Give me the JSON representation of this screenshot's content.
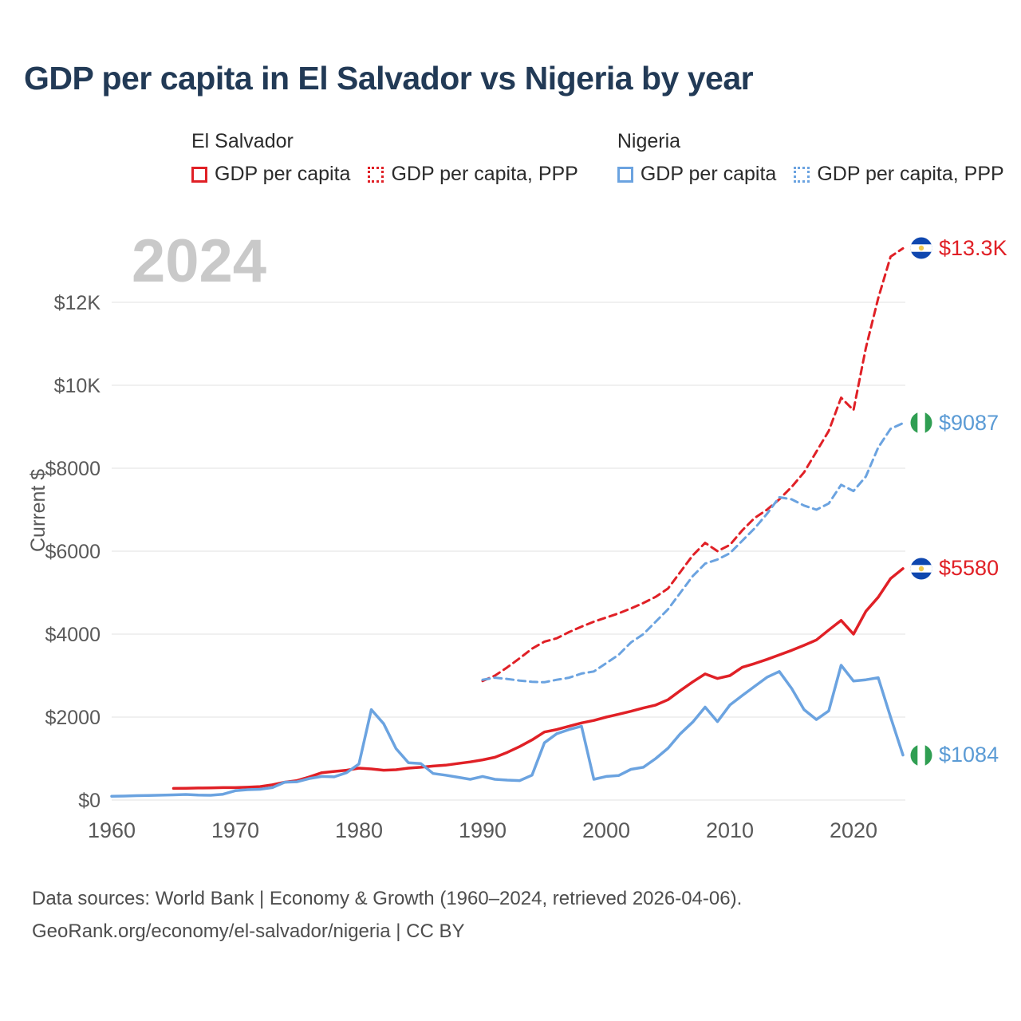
{
  "title": "GDP per capita in El Salvador vs Nigeria by year",
  "watermark": "2024",
  "colors": {
    "el_salvador": "#e02026",
    "nigeria": "#6ba3e0",
    "nigeria_label_text": "#5b9bd5",
    "title_text": "#223a56",
    "axis_text": "#595959",
    "gridline": "#ececec",
    "watermark": "#c9c9c9"
  },
  "legend": {
    "groups": [
      {
        "country": "El Salvador",
        "items": [
          {
            "label": "GDP per capita",
            "style": "solid",
            "color": "#e02026"
          },
          {
            "label": "GDP per capita, PPP",
            "style": "dotted",
            "color": "#e02026"
          }
        ]
      },
      {
        "country": "Nigeria",
        "items": [
          {
            "label": "GDP per capita",
            "style": "solid",
            "color": "#6ba3e0"
          },
          {
            "label": "GDP per capita, PPP",
            "style": "dotted",
            "color": "#6ba3e0"
          }
        ]
      }
    ]
  },
  "chart_data": {
    "type": "line",
    "title": "GDP per capita in El Salvador vs Nigeria by year",
    "xlabel": "",
    "ylabel": "Current $",
    "x_range": [
      1960,
      2024
    ],
    "ylim": [
      0,
      13600
    ],
    "grid": "horizontal",
    "legend_position": "top",
    "x_ticks": [
      1960,
      1970,
      1980,
      1990,
      2000,
      2010,
      2020
    ],
    "y_ticks": [
      {
        "value": 0,
        "label": "$0"
      },
      {
        "value": 2000,
        "label": "$2000"
      },
      {
        "value": 4000,
        "label": "$4000"
      },
      {
        "value": 6000,
        "label": "$6000"
      },
      {
        "value": 8000,
        "label": "$8000"
      },
      {
        "value": 10000,
        "label": "$10K"
      },
      {
        "value": 12000,
        "label": "$12K"
      }
    ],
    "series": [
      {
        "id": "es-gdp",
        "name": "El Salvador GDP per capita",
        "country": "El Salvador",
        "measure": "GDP per capita",
        "color": "#e02026",
        "dash": "solid",
        "end_label": "$5580",
        "end_value": 5580,
        "points": [
          [
            1965,
            280
          ],
          [
            1966,
            285
          ],
          [
            1967,
            290
          ],
          [
            1968,
            295
          ],
          [
            1969,
            300
          ],
          [
            1970,
            300
          ],
          [
            1971,
            310
          ],
          [
            1972,
            325
          ],
          [
            1973,
            370
          ],
          [
            1974,
            430
          ],
          [
            1975,
            470
          ],
          [
            1976,
            560
          ],
          [
            1977,
            660
          ],
          [
            1978,
            690
          ],
          [
            1979,
            720
          ],
          [
            1980,
            770
          ],
          [
            1981,
            750
          ],
          [
            1982,
            720
          ],
          [
            1983,
            730
          ],
          [
            1984,
            770
          ],
          [
            1985,
            790
          ],
          [
            1986,
            820
          ],
          [
            1987,
            840
          ],
          [
            1988,
            880
          ],
          [
            1989,
            920
          ],
          [
            1990,
            970
          ],
          [
            1991,
            1030
          ],
          [
            1992,
            1150
          ],
          [
            1993,
            1290
          ],
          [
            1994,
            1450
          ],
          [
            1995,
            1640
          ],
          [
            1996,
            1700
          ],
          [
            1997,
            1780
          ],
          [
            1998,
            1860
          ],
          [
            1999,
            1920
          ],
          [
            2000,
            2000
          ],
          [
            2001,
            2070
          ],
          [
            2002,
            2140
          ],
          [
            2003,
            2220
          ],
          [
            2004,
            2290
          ],
          [
            2005,
            2420
          ],
          [
            2006,
            2640
          ],
          [
            2007,
            2850
          ],
          [
            2008,
            3040
          ],
          [
            2009,
            2930
          ],
          [
            2010,
            3000
          ],
          [
            2011,
            3200
          ],
          [
            2012,
            3290
          ],
          [
            2013,
            3390
          ],
          [
            2014,
            3500
          ],
          [
            2015,
            3610
          ],
          [
            2016,
            3730
          ],
          [
            2017,
            3860
          ],
          [
            2018,
            4100
          ],
          [
            2019,
            4330
          ],
          [
            2020,
            4000
          ],
          [
            2021,
            4550
          ],
          [
            2022,
            4890
          ],
          [
            2023,
            5340
          ],
          [
            2024,
            5580
          ]
        ]
      },
      {
        "id": "es-ppp",
        "name": "El Salvador GDP per capita, PPP",
        "country": "El Salvador",
        "measure": "GDP per capita, PPP",
        "color": "#e02026",
        "dash": "dashed",
        "end_label": "$13.3K",
        "end_value": 13300,
        "points": [
          [
            1990,
            2870
          ],
          [
            1991,
            3000
          ],
          [
            1992,
            3200
          ],
          [
            1993,
            3420
          ],
          [
            1994,
            3650
          ],
          [
            1995,
            3820
          ],
          [
            1996,
            3900
          ],
          [
            1997,
            4050
          ],
          [
            1998,
            4180
          ],
          [
            1999,
            4300
          ],
          [
            2000,
            4400
          ],
          [
            2001,
            4500
          ],
          [
            2002,
            4620
          ],
          [
            2003,
            4750
          ],
          [
            2004,
            4900
          ],
          [
            2005,
            5100
          ],
          [
            2006,
            5500
          ],
          [
            2007,
            5900
          ],
          [
            2008,
            6200
          ],
          [
            2009,
            6000
          ],
          [
            2010,
            6150
          ],
          [
            2011,
            6500
          ],
          [
            2012,
            6800
          ],
          [
            2013,
            7000
          ],
          [
            2014,
            7250
          ],
          [
            2015,
            7550
          ],
          [
            2016,
            7900
          ],
          [
            2017,
            8400
          ],
          [
            2018,
            8900
          ],
          [
            2019,
            9700
          ],
          [
            2020,
            9400
          ],
          [
            2021,
            10900
          ],
          [
            2022,
            12100
          ],
          [
            2023,
            13100
          ],
          [
            2024,
            13300
          ]
        ]
      },
      {
        "id": "ng-gdp",
        "name": "Nigeria GDP per capita",
        "country": "Nigeria",
        "measure": "GDP per capita",
        "color": "#6ba3e0",
        "dash": "solid",
        "end_label": "$1084",
        "end_value": 1084,
        "points": [
          [
            1960,
            93
          ],
          [
            1961,
            97
          ],
          [
            1962,
            105
          ],
          [
            1963,
            110
          ],
          [
            1964,
            118
          ],
          [
            1965,
            125
          ],
          [
            1966,
            135
          ],
          [
            1967,
            120
          ],
          [
            1968,
            115
          ],
          [
            1969,
            140
          ],
          [
            1970,
            225
          ],
          [
            1971,
            250
          ],
          [
            1972,
            260
          ],
          [
            1973,
            300
          ],
          [
            1974,
            430
          ],
          [
            1975,
            440
          ],
          [
            1976,
            520
          ],
          [
            1977,
            570
          ],
          [
            1978,
            560
          ],
          [
            1979,
            660
          ],
          [
            1980,
            870
          ],
          [
            1981,
            2180
          ],
          [
            1982,
            1840
          ],
          [
            1983,
            1240
          ],
          [
            1984,
            900
          ],
          [
            1985,
            880
          ],
          [
            1986,
            640
          ],
          [
            1987,
            600
          ],
          [
            1988,
            550
          ],
          [
            1989,
            500
          ],
          [
            1990,
            570
          ],
          [
            1991,
            500
          ],
          [
            1992,
            480
          ],
          [
            1993,
            470
          ],
          [
            1994,
            600
          ],
          [
            1995,
            1380
          ],
          [
            1996,
            1600
          ],
          [
            1997,
            1700
          ],
          [
            1998,
            1780
          ],
          [
            1999,
            500
          ],
          [
            2000,
            570
          ],
          [
            2001,
            590
          ],
          [
            2002,
            740
          ],
          [
            2003,
            790
          ],
          [
            2004,
            1000
          ],
          [
            2005,
            1250
          ],
          [
            2006,
            1600
          ],
          [
            2007,
            1880
          ],
          [
            2008,
            2240
          ],
          [
            2009,
            1890
          ],
          [
            2010,
            2290
          ],
          [
            2011,
            2520
          ],
          [
            2012,
            2740
          ],
          [
            2013,
            2960
          ],
          [
            2014,
            3100
          ],
          [
            2015,
            2690
          ],
          [
            2016,
            2180
          ],
          [
            2017,
            1940
          ],
          [
            2018,
            2150
          ],
          [
            2019,
            3250
          ],
          [
            2020,
            2870
          ],
          [
            2021,
            2900
          ],
          [
            2022,
            2950
          ],
          [
            2023,
            2000
          ],
          [
            2024,
            1084
          ]
        ]
      },
      {
        "id": "ng-ppp",
        "name": "Nigeria GDP per capita, PPP",
        "country": "Nigeria",
        "measure": "GDP per capita, PPP",
        "color": "#6ba3e0",
        "dash": "dashed",
        "end_label": "$9087",
        "end_value": 9087,
        "points": [
          [
            1990,
            2900
          ],
          [
            1991,
            2950
          ],
          [
            1992,
            2920
          ],
          [
            1993,
            2880
          ],
          [
            1994,
            2850
          ],
          [
            1995,
            2840
          ],
          [
            1996,
            2900
          ],
          [
            1997,
            2950
          ],
          [
            1998,
            3050
          ],
          [
            1999,
            3100
          ],
          [
            2000,
            3300
          ],
          [
            2001,
            3500
          ],
          [
            2002,
            3800
          ],
          [
            2003,
            4000
          ],
          [
            2004,
            4300
          ],
          [
            2005,
            4600
          ],
          [
            2006,
            5000
          ],
          [
            2007,
            5400
          ],
          [
            2008,
            5700
          ],
          [
            2009,
            5800
          ],
          [
            2010,
            5950
          ],
          [
            2011,
            6250
          ],
          [
            2012,
            6550
          ],
          [
            2013,
            6900
          ],
          [
            2014,
            7300
          ],
          [
            2015,
            7250
          ],
          [
            2016,
            7100
          ],
          [
            2017,
            7000
          ],
          [
            2018,
            7150
          ],
          [
            2019,
            7600
          ],
          [
            2020,
            7450
          ],
          [
            2021,
            7800
          ],
          [
            2022,
            8500
          ],
          [
            2023,
            8950
          ],
          [
            2024,
            9087
          ]
        ]
      }
    ]
  },
  "footer": {
    "line1": "Data sources: World Bank | Economy & Growth (1960–2024, retrieved 2026-04-06).",
    "line2": "GeoRank.org/economy/el-salvador/nigeria | CC BY"
  }
}
